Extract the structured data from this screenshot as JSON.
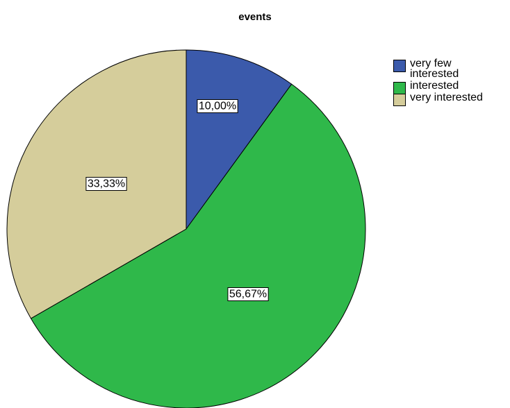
{
  "chart_data": {
    "type": "pie",
    "title": "events",
    "slices": [
      {
        "label": "very few interested",
        "legend_lines": [
          "very few",
          "interested"
        ],
        "value": 10.0,
        "value_label": "10,00%",
        "color": "#3b5aab"
      },
      {
        "label": "interested",
        "legend_lines": [
          "interested"
        ],
        "value": 56.67,
        "value_label": "56,67%",
        "color": "#2fb84a"
      },
      {
        "label": "very interested",
        "legend_lines": [
          "very interested"
        ],
        "value": 33.33,
        "value_label": "33,33%",
        "color": "#d5cd9b"
      }
    ],
    "legend_position": "right"
  }
}
